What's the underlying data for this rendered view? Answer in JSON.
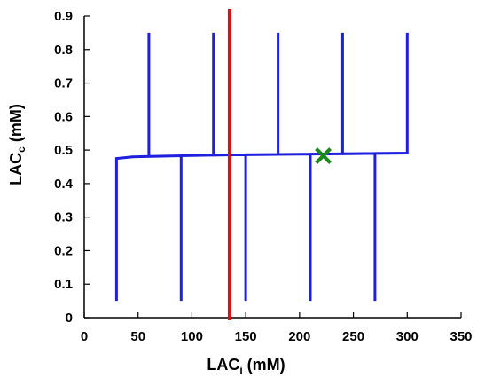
{
  "chart_data": {
    "type": "line",
    "xlabel": {
      "main": "LAC",
      "sub": "i",
      "unit": " (mM)"
    },
    "ylabel": {
      "main": "LAC",
      "sub": "c",
      "unit": " (mM)"
    },
    "xlim": [
      0,
      350
    ],
    "ylim": [
      0,
      0.9
    ],
    "xticks": [
      0,
      50,
      100,
      150,
      200,
      250,
      300,
      350
    ],
    "yticks": [
      0,
      0.1,
      0.2,
      0.3,
      0.4,
      0.5,
      0.6,
      0.7,
      0.8,
      0.9
    ],
    "grid": false,
    "series": [
      {
        "color": "#1f1fe0",
        "points": [
          [
            30,
            0.05
          ],
          [
            30,
            0.475
          ],
          [
            45,
            0.48
          ],
          [
            60,
            0.481
          ],
          [
            60,
            0.85
          ],
          [
            60,
            0.481
          ],
          [
            90,
            0.483
          ],
          [
            90,
            0.05
          ],
          [
            90,
            0.483
          ],
          [
            120,
            0.485
          ],
          [
            120,
            0.85
          ],
          [
            120,
            0.485
          ],
          [
            150,
            0.486
          ],
          [
            150,
            0.05
          ],
          [
            150,
            0.486
          ],
          [
            180,
            0.487
          ],
          [
            180,
            0.85
          ],
          [
            180,
            0.487
          ],
          [
            210,
            0.488
          ],
          [
            210,
            0.05
          ],
          [
            210,
            0.488
          ],
          [
            240,
            0.489
          ],
          [
            240,
            0.85
          ],
          [
            240,
            0.489
          ],
          [
            270,
            0.49
          ],
          [
            270,
            0.05
          ],
          [
            270,
            0.49
          ],
          [
            300,
            0.491
          ],
          [
            300,
            0.85
          ]
        ]
      }
    ],
    "vline": {
      "x": 135,
      "color": "#e01010"
    },
    "marker": {
      "x": 222,
      "y": 0.483,
      "symbol": "x",
      "color": "#1a8a1a"
    }
  }
}
